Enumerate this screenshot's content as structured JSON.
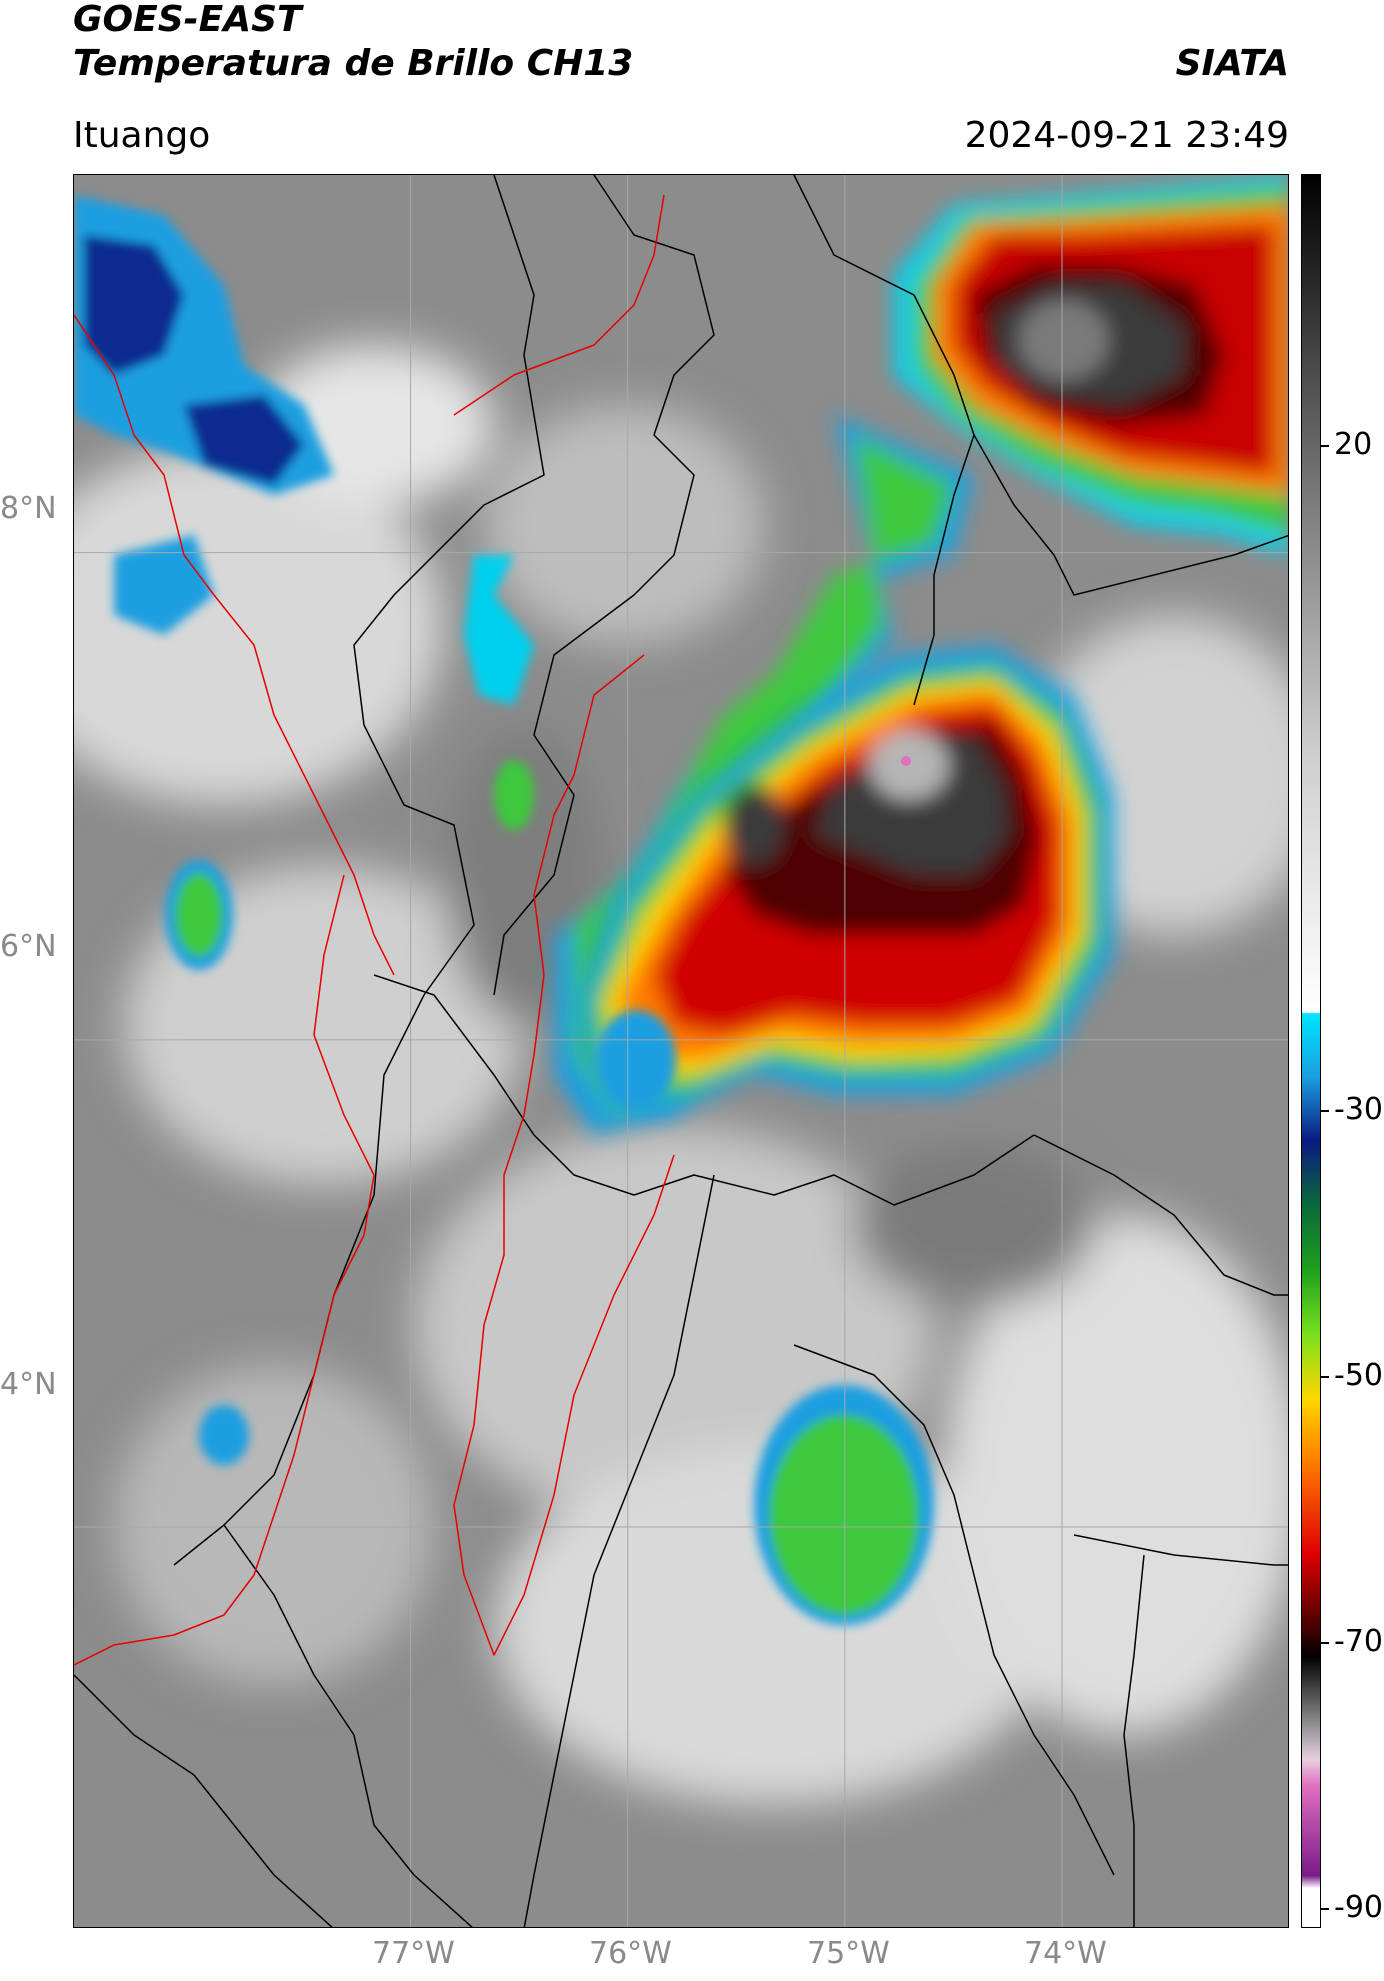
{
  "header": {
    "satellite": "GOES-EAST",
    "product": "Temperatura de Brillo CH13",
    "agency": "SIATA",
    "location": "Ituango",
    "datetime": "2024-09-21 23:49"
  },
  "map": {
    "lon_range": [
      -78.55,
      -72.95
    ],
    "lat_range": [
      2.35,
      9.55
    ],
    "lat_ticks": [
      {
        "value": 8,
        "label": "8°N"
      },
      {
        "value": 6,
        "label": "6°N"
      },
      {
        "value": 4,
        "label": "4°N"
      }
    ],
    "lon_ticks": [
      {
        "value": -77,
        "label": "77°W"
      },
      {
        "value": -76,
        "label": "76°W"
      },
      {
        "value": -75,
        "label": "75°W"
      },
      {
        "value": -74,
        "label": "74°W"
      }
    ],
    "colors": {
      "background_gray": "#8c8c8c",
      "cold_cloud_red": "#c80000",
      "core_black": "#1a1a1a",
      "anvil_green": "#3cc83c",
      "border_red": "#e60000",
      "border_black": "#000000"
    }
  },
  "colorbar": {
    "ticks": [
      {
        "value": 20,
        "label": "20"
      },
      {
        "value": -30,
        "label": "-30"
      },
      {
        "value": -50,
        "label": "-50"
      },
      {
        "value": -70,
        "label": "-70"
      },
      {
        "value": -90,
        "label": "-90"
      }
    ],
    "stops": [
      {
        "value": 45,
        "color": "#000000"
      },
      {
        "value": 30,
        "color": "#4a4a4a"
      },
      {
        "value": 20,
        "color": "#7a7a7a"
      },
      {
        "value": 0,
        "color": "#cfcfcf"
      },
      {
        "value": -20,
        "color": "#ffffff"
      },
      {
        "value": -20.1,
        "color": "#00e5ff"
      },
      {
        "value": -25,
        "color": "#1a9fe0"
      },
      {
        "value": -30,
        "color": "#0a1a80"
      },
      {
        "value": -35,
        "color": "#0a6a3a"
      },
      {
        "value": -40,
        "color": "#1ea01e"
      },
      {
        "value": -45,
        "color": "#7ae01e"
      },
      {
        "value": -50,
        "color": "#ffd700"
      },
      {
        "value": -55,
        "color": "#ff7a00"
      },
      {
        "value": -62,
        "color": "#e00000"
      },
      {
        "value": -68,
        "color": "#400000"
      },
      {
        "value": -70,
        "color": "#000000"
      },
      {
        "value": -75,
        "color": "#888888"
      },
      {
        "value": -78,
        "color": "#e8d0e0"
      },
      {
        "value": -80,
        "color": "#e070c0"
      },
      {
        "value": -87,
        "color": "#7a1a8a"
      },
      {
        "value": -88,
        "color": "#ffffff"
      },
      {
        "value": -91,
        "color": "#ffffff"
      }
    ]
  }
}
